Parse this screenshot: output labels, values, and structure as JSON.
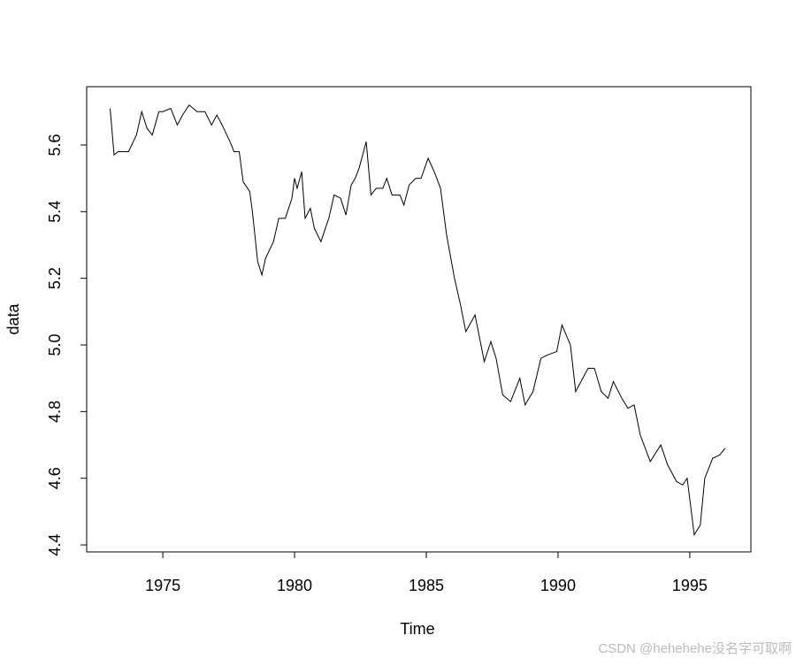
{
  "chart_data": {
    "type": "line",
    "xlabel": "Time",
    "ylabel": "data",
    "x": [
      1973.0,
      1973.15,
      1973.3,
      1973.7,
      1974.0,
      1974.2,
      1974.4,
      1974.6,
      1974.85,
      1975.0,
      1975.3,
      1975.55,
      1975.75,
      1976.0,
      1976.3,
      1976.6,
      1976.85,
      1977.05,
      1977.25,
      1977.55,
      1977.7,
      1977.9,
      1978.05,
      1978.3,
      1978.4,
      1978.6,
      1978.76,
      1978.9,
      1979.2,
      1979.4,
      1979.65,
      1979.9,
      1980.0,
      1980.1,
      1980.27,
      1980.4,
      1980.6,
      1980.75,
      1981.0,
      1981.3,
      1981.5,
      1981.75,
      1981.95,
      1982.15,
      1982.3,
      1982.45,
      1982.72,
      1982.9,
      1983.1,
      1983.35,
      1983.5,
      1983.7,
      1984.0,
      1984.15,
      1984.35,
      1984.6,
      1984.8,
      1985.07,
      1985.3,
      1985.54,
      1985.77,
      1986.07,
      1986.3,
      1986.5,
      1986.85,
      1987.0,
      1987.2,
      1987.45,
      1987.65,
      1987.9,
      1988.2,
      1988.55,
      1988.75,
      1989.05,
      1989.35,
      1989.6,
      1989.95,
      1990.15,
      1990.47,
      1990.67,
      1990.87,
      1991.14,
      1991.38,
      1991.64,
      1991.9,
      1992.1,
      1992.42,
      1992.65,
      1992.89,
      1993.12,
      1993.5,
      1993.9,
      1994.16,
      1994.5,
      1994.73,
      1994.9,
      1995.17,
      1995.4,
      1995.57,
      1995.87,
      1996.14,
      1996.34
    ],
    "values": [
      5.71,
      5.57,
      5.58,
      5.58,
      5.63,
      5.7,
      5.65,
      5.63,
      5.7,
      5.7,
      5.71,
      5.66,
      5.69,
      5.72,
      5.7,
      5.7,
      5.66,
      5.69,
      5.66,
      5.61,
      5.58,
      5.58,
      5.49,
      5.46,
      5.4,
      5.25,
      5.21,
      5.26,
      5.31,
      5.38,
      5.38,
      5.44,
      5.5,
      5.47,
      5.52,
      5.38,
      5.41,
      5.35,
      5.31,
      5.38,
      5.45,
      5.44,
      5.39,
      5.48,
      5.5,
      5.53,
      5.61,
      5.45,
      5.47,
      5.47,
      5.5,
      5.45,
      5.45,
      5.42,
      5.48,
      5.5,
      5.5,
      5.56,
      5.52,
      5.47,
      5.33,
      5.2,
      5.12,
      5.04,
      5.09,
      5.03,
      4.95,
      5.01,
      4.96,
      4.85,
      4.83,
      4.9,
      4.82,
      4.86,
      4.96,
      4.97,
      4.98,
      5.06,
      5.0,
      4.86,
      4.89,
      4.93,
      4.93,
      4.86,
      4.84,
      4.89,
      4.84,
      4.81,
      4.82,
      4.73,
      4.65,
      4.7,
      4.64,
      4.59,
      4.58,
      4.6,
      4.43,
      4.46,
      4.6,
      4.66,
      4.67,
      4.69
    ],
    "color": "#000000",
    "xlim": [
      1972.11,
      1997.32
    ],
    "xticks": [
      1975,
      1980,
      1985,
      1990,
      1995
    ],
    "ylim": [
      4.379,
      5.775
    ],
    "yticks": [
      4.4,
      4.6,
      4.8,
      {
        "value": 5,
        "label": "5.0"
      },
      5.2,
      5.4,
      5.6
    ]
  },
  "watermark": "CSDN @hehehehe没名字可取啊"
}
